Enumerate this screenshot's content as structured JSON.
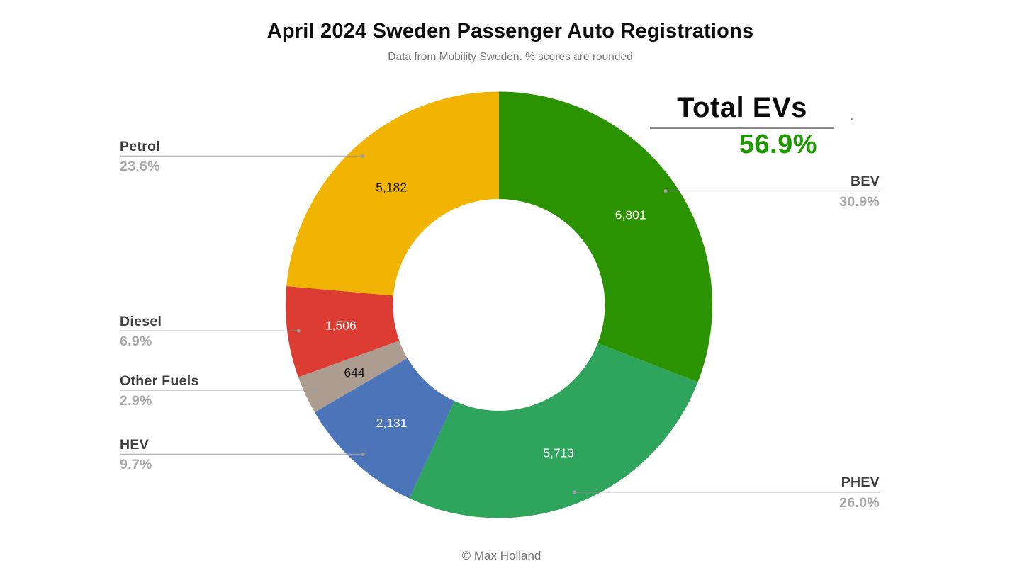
{
  "page": {
    "title": "April 2024 Sweden Passenger Auto Registrations",
    "subtitle": "Data from Mobility Sweden. % scores are rounded",
    "credit": "© Max Holland"
  },
  "totals": {
    "title": "Total EVs",
    "value": "56.9%",
    "value_color": "#1E9902"
  },
  "chart_data": {
    "type": "pie",
    "variant": "donut",
    "title": "April 2024 Sweden Passenger Auto Registrations",
    "subtitle": "Data from Mobility Sweden. % scores are rounded",
    "start_angle_deg": 0,
    "direction": "clockwise",
    "legend_position": "callouts",
    "annotation": {
      "label": "Total EVs",
      "value": "56.9%"
    },
    "slices": [
      {
        "label": "BEV",
        "value": 6801,
        "value_label": "6,801",
        "pct": 30.9,
        "pct_label": "30.9%",
        "color": "#2B9300",
        "value_color": "#ffffff",
        "side": "right"
      },
      {
        "label": "PHEV",
        "value": 5713,
        "value_label": "5,713",
        "pct": 26.0,
        "pct_label": "26.0%",
        "color": "#2FA45C",
        "value_color": "#ffffff",
        "side": "right"
      },
      {
        "label": "HEV",
        "value": 2131,
        "value_label": "2,131",
        "pct": 9.7,
        "pct_label": "9.7%",
        "color": "#4C74B8",
        "value_color": "#ffffff",
        "side": "left"
      },
      {
        "label": "Other Fuels",
        "value": 644,
        "value_label": "644",
        "pct": 2.9,
        "pct_label": "2.9%",
        "color": "#AC9D90",
        "value_color": "#111111",
        "side": "left"
      },
      {
        "label": "Diesel",
        "value": 1506,
        "value_label": "1,506",
        "pct": 6.9,
        "pct_label": "6.9%",
        "color": "#DC3C31",
        "value_color": "#ffffff",
        "side": "left"
      },
      {
        "label": "Petrol",
        "value": 5182,
        "value_label": "5,182",
        "pct": 23.6,
        "pct_label": "23.6%",
        "color": "#F2B402",
        "value_color": "#111111",
        "side": "left"
      }
    ]
  }
}
